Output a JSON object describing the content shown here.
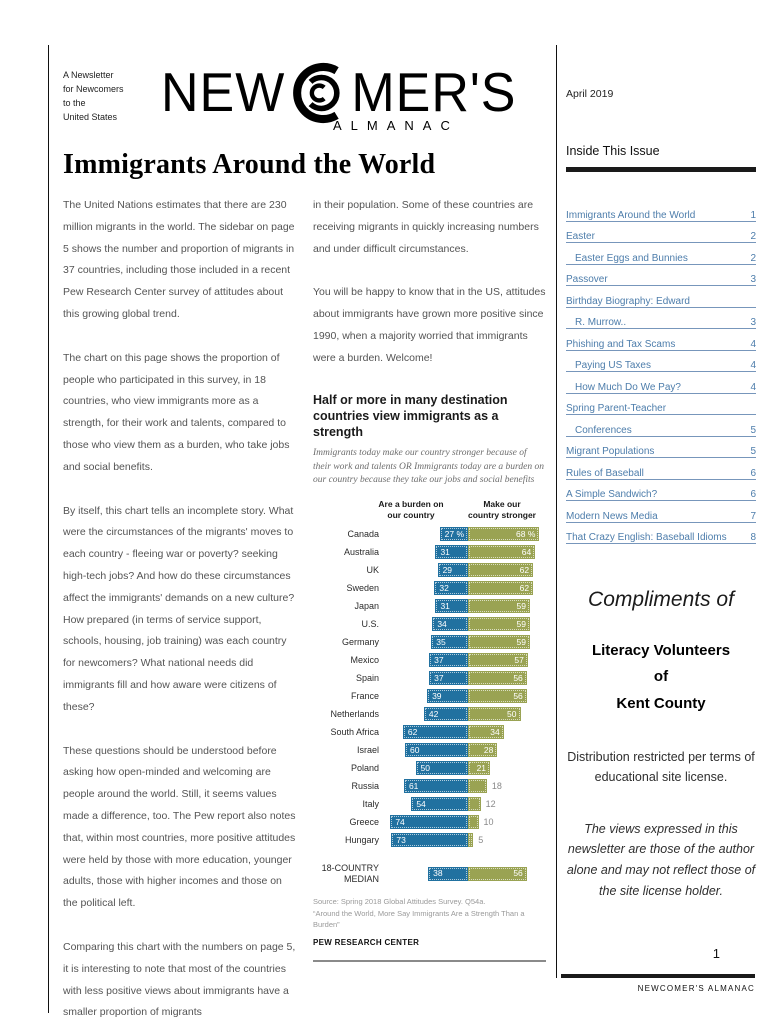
{
  "page": {
    "date": "April 2019",
    "page_number": "1",
    "footer_brand": "NEWCOMER'S ALMANAC"
  },
  "masthead": {
    "tagline": "A Newsletter\nfor Newcomers\nto the\nUnited States",
    "logo_new": "NEW",
    "logo_mers": "MER'S",
    "logo_almanac": "ALMANAC"
  },
  "article": {
    "title": "Immigrants Around the World",
    "col1": [
      "The United Nations estimates that there are 230 million migrants in the world. The sidebar on page 5 shows the number and proportion of migrants in 37 countries, including those included in a recent Pew Research Center survey of attitudes about this growing global trend.",
      "The chart on this page shows the proportion of people who participated in this survey, in 18 countries, who view immigrants more as a strength, for their work and talents, compared to those who view them as a burden, who take jobs and social benefits.",
      "By itself, this chart tells an incomplete story. What were the circumstances of the migrants' moves to each country - fleeing war or poverty? seeking high-tech jobs? And how do these circumstances affect the immigrants' demands on a new culture? How prepared (in terms of service support, schools, housing, job training) was each country for newcomers? What national needs did immigrants fill and how aware were citizens of these?",
      "These questions should be understood before asking how open-minded and welcoming are people around the world. Still, it seems values made a difference, too. The Pew report also notes that, within most countries, more positive attitudes were held by those with more education, younger adults, those with higher incomes and those on the political left.",
      "Comparing this chart with the numbers on page 5, it is interesting to note that most of the countries with less positive views about immigrants have a smaller proportion of migrants"
    ],
    "col2": [
      "in their population. Some of these countries are receiving migrants in quickly  increasing numbers and under difficult circumstances.",
      "You will be happy to know that in the US, attitudes about immigrants have grown more positive since 1990, when a majority worried that immigrants were a burden. Welcome!"
    ]
  },
  "chart_data": {
    "type": "bar",
    "orientation": "horizontal-diverging",
    "title": "Half or more in many destination countries view immigrants as a strength",
    "subtitle": "Immigrants today make our country stronger because of their work and talents OR Immigrants today are a burden on our country because they take our jobs and social benefits",
    "series": [
      {
        "name": "Are a burden on our country",
        "display": "Are a burden on\nour country",
        "color": "#2171A0"
      },
      {
        "name": "Make our country stronger",
        "display": "Make our\ncountry stronger",
        "color": "#9AA353"
      }
    ],
    "categories": [
      "Canada",
      "Australia",
      "UK",
      "Sweden",
      "Japan",
      "U.S.",
      "Germany",
      "Mexico",
      "Spain",
      "France",
      "Netherlands",
      "South Africa",
      "Israel",
      "Poland",
      "Russia",
      "Italy",
      "Greece",
      "Hungary"
    ],
    "burden": [
      27,
      31,
      29,
      32,
      31,
      34,
      35,
      37,
      37,
      39,
      42,
      62,
      60,
      50,
      61,
      54,
      74,
      73
    ],
    "strength": [
      68,
      64,
      62,
      62,
      59,
      59,
      59,
      57,
      56,
      56,
      50,
      34,
      28,
      21,
      18,
      12,
      10,
      5
    ],
    "first_row_labels": {
      "burden": "27 %",
      "strength": "68 %"
    },
    "median": {
      "label": "18-COUNTRY\nMEDIAN",
      "burden": 38,
      "strength": 56
    },
    "xlim": [
      0,
      80
    ],
    "grid": false,
    "legend_position": "top",
    "source": "Source: Spring 2018 Global Attitudes Survey. Q54a.\n“Around the World, More Say Immigrants Are a Strength Than a Burden”",
    "attribution": "PEW RESEARCH CENTER"
  },
  "sidebar": {
    "inside_title": "Inside This Issue",
    "toc": [
      {
        "label": "Immigrants Around the World",
        "page": "1",
        "indent": 0
      },
      {
        "label": "Easter",
        "page": "2",
        "indent": 0
      },
      {
        "label": "Easter Eggs and Bunnies",
        "page": "2",
        "indent": 1
      },
      {
        "label": "Passover",
        "page": "3",
        "indent": 0
      },
      {
        "label": "Birthday Biography: Edward",
        "page": "",
        "indent": 0
      },
      {
        "label": "R. Murrow..",
        "page": "3",
        "indent": 1
      },
      {
        "label": "Phishing and Tax Scams",
        "page": "4",
        "indent": 0
      },
      {
        "label": "Paying US Taxes",
        "page": "4",
        "indent": 1
      },
      {
        "label": "How Much Do We Pay?",
        "page": "4",
        "indent": 1
      },
      {
        "label": "Spring Parent-Teacher",
        "page": "",
        "indent": 0
      },
      {
        "label": "Conferences",
        "page": "5",
        "indent": 1
      },
      {
        "label": "Migrant Populations",
        "page": "5",
        "indent": 0
      },
      {
        "label": "Rules of Baseball",
        "page": "6",
        "indent": 0
      },
      {
        "label": "A Simple Sandwich?",
        "page": "6",
        "indent": 0
      },
      {
        "label": "Modern News Media",
        "page": "7",
        "indent": 0
      },
      {
        "label": "That Crazy English: Baseball Idioms",
        "page": "8",
        "indent": 0
      }
    ],
    "compliments": "Compliments of",
    "organization": "Literacy Volunteers\nof\nKent County",
    "distribution": "Distribution restricted per terms of educational site license.",
    "disclaimer": "The views expressed in this newsletter are those of the author alone and may not reflect those of the site license holder."
  }
}
